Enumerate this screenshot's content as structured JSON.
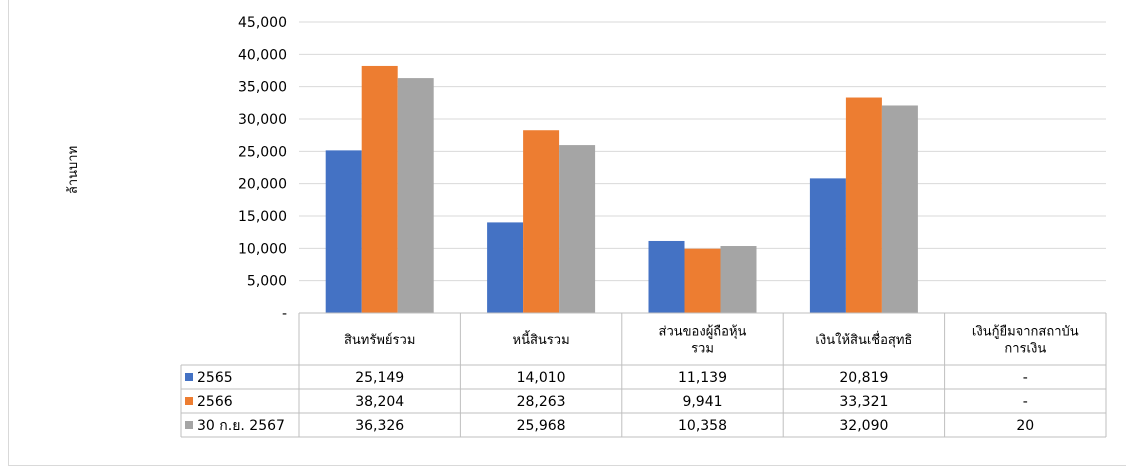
{
  "chart_data": {
    "type": "bar",
    "title": "",
    "xlabel": "",
    "ylabel": "ล้านบาท",
    "ylim": [
      0,
      45000
    ],
    "yticks": [
      "-",
      "5,000",
      "10,000",
      "15,000",
      "20,000",
      "25,000",
      "30,000",
      "35,000",
      "40,000",
      "45,000"
    ],
    "categories": [
      [
        "สินทรัพย์รวม"
      ],
      [
        "หนี้สินรวม"
      ],
      [
        "ส่วนของผู้ถือหุ้น",
        "รวม"
      ],
      [
        "เงินให้สินเชื่อสุทธิ"
      ],
      [
        "เงินกู้ยืมจากสถาบัน",
        "การเงิน"
      ]
    ],
    "series": [
      {
        "name": "2565",
        "color": "#4472c4",
        "values": [
          25149,
          14010,
          11139,
          20819,
          0
        ],
        "labels": [
          "25,149",
          "14,010",
          "11,139",
          "20,819",
          "-"
        ]
      },
      {
        "name": "2566",
        "color": "#ed7d31",
        "values": [
          38204,
          28263,
          9941,
          33321,
          0
        ],
        "labels": [
          "38,204",
          "28,263",
          "9,941",
          "33,321",
          "-"
        ]
      },
      {
        "name": "30 ก.ย. 2567",
        "color": "#a5a5a5",
        "values": [
          36326,
          25968,
          10358,
          32090,
          20
        ],
        "labels": [
          "36,326",
          "25,968",
          "10,358",
          "32,090",
          "20"
        ]
      }
    ],
    "grid": true,
    "legend": "data-table"
  }
}
